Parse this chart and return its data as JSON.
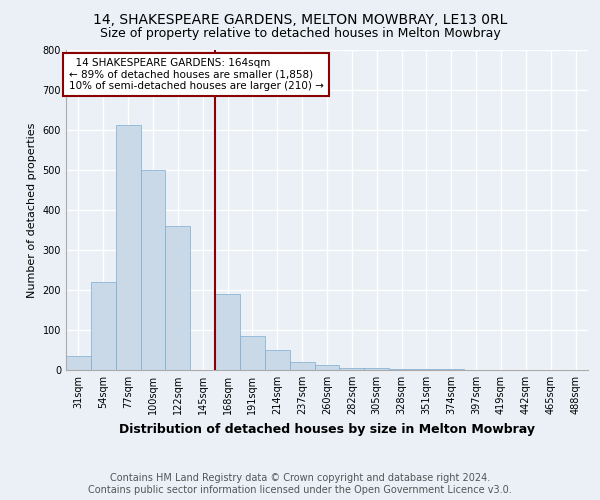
{
  "title1": "14, SHAKESPEARE GARDENS, MELTON MOWBRAY, LE13 0RL",
  "title2": "Size of property relative to detached houses in Melton Mowbray",
  "xlabel": "Distribution of detached houses by size in Melton Mowbray",
  "ylabel": "Number of detached properties",
  "categories": [
    "31sqm",
    "54sqm",
    "77sqm",
    "100sqm",
    "122sqm",
    "145sqm",
    "168sqm",
    "191sqm",
    "214sqm",
    "237sqm",
    "260sqm",
    "282sqm",
    "305sqm",
    "328sqm",
    "351sqm",
    "374sqm",
    "397sqm",
    "419sqm",
    "442sqm",
    "465sqm",
    "488sqm"
  ],
  "values": [
    35,
    220,
    613,
    500,
    360,
    0,
    190,
    85,
    50,
    20,
    12,
    6,
    4,
    3,
    2,
    2,
    1,
    0,
    0,
    0,
    0
  ],
  "bar_color": "#c9d9e8",
  "bar_edge_color": "#7bacd4",
  "vline_color": "#8b0000",
  "vline_x_index": 6,
  "annotation_text": "  14 SHAKESPEARE GARDENS: 164sqm\n← 89% of detached houses are smaller (1,858)\n10% of semi-detached houses are larger (210) →",
  "annotation_box_color": "#ffffff",
  "annotation_box_edge_color": "#8b0000",
  "ylim": [
    0,
    800
  ],
  "yticks": [
    0,
    100,
    200,
    300,
    400,
    500,
    600,
    700,
    800
  ],
  "background_color": "#eaf0f6",
  "grid_color": "#ffffff",
  "footer": "Contains HM Land Registry data © Crown copyright and database right 2024.\nContains public sector information licensed under the Open Government Licence v3.0.",
  "title1_fontsize": 10,
  "title2_fontsize": 9,
  "xlabel_fontsize": 9,
  "ylabel_fontsize": 8,
  "tick_fontsize": 7,
  "footer_fontsize": 7,
  "annotation_fontsize": 7.5
}
